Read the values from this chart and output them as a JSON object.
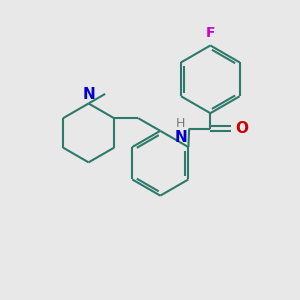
{
  "background_color": "#e8e8e8",
  "bond_color": "#2d7a6a",
  "N_color": "#0000cc",
  "O_color": "#cc0000",
  "F_color": "#cc00cc",
  "H_color": "#777777",
  "line_width": 1.5,
  "figsize": [
    3.0,
    3.0
  ],
  "dpi": 100,
  "xlim": [
    0,
    10
  ],
  "ylim": [
    0,
    10
  ]
}
